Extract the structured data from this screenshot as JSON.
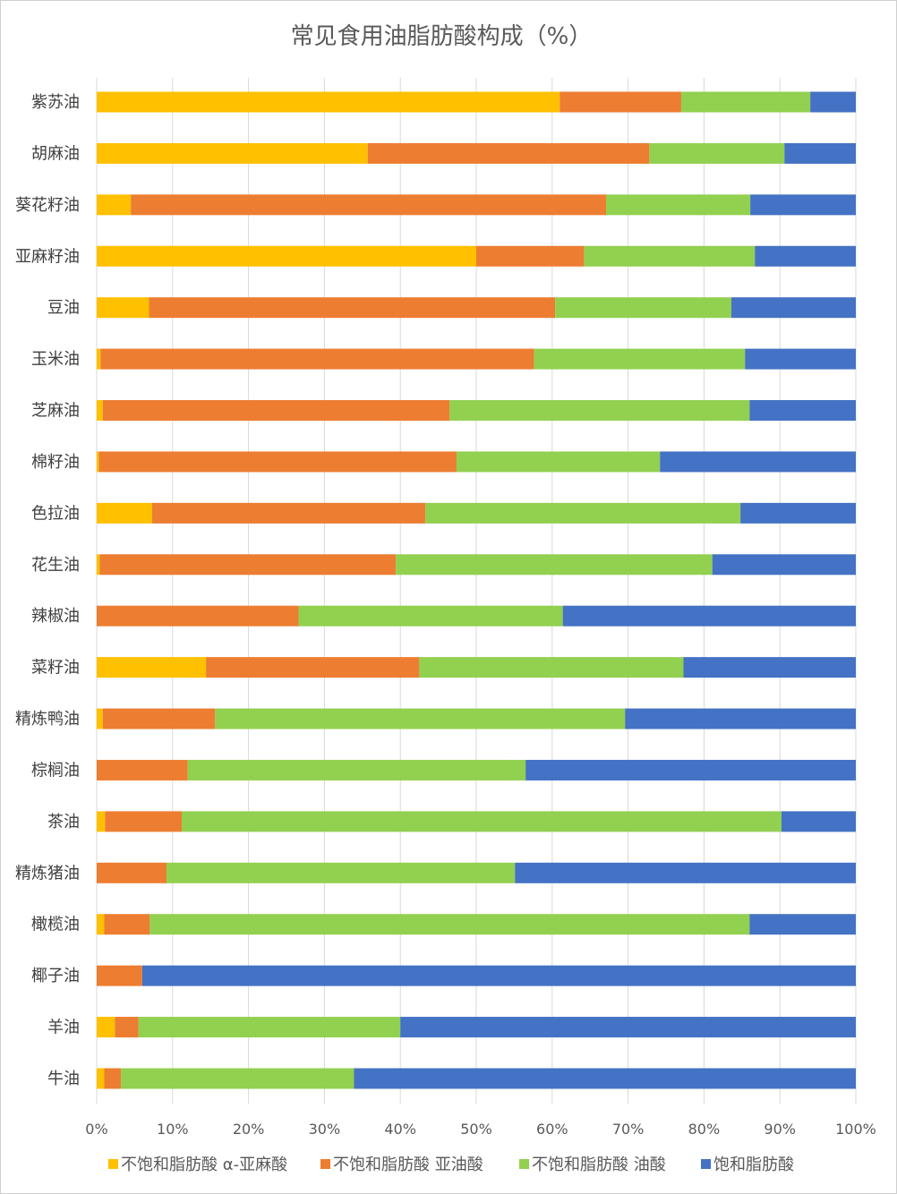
{
  "chart_data": {
    "type": "bar",
    "orientation": "horizontal",
    "stacked": "percent",
    "title": "常见食用油脂肪酸构成（%）",
    "categories": [
      "紫苏油",
      "胡麻油",
      "葵花籽油",
      "亚麻籽油",
      "豆油",
      "玉米油",
      "芝麻油",
      "棉籽油",
      "色拉油",
      "花生油",
      "辣椒油",
      "菜籽油",
      "精炼鸭油",
      "棕榈油",
      "茶油",
      "精炼猪油",
      "橄榄油",
      "椰子油",
      "羊油",
      "牛油"
    ],
    "series": [
      {
        "name": "不饱和脂肪酸 α-亚麻酸",
        "color": "#FFC000",
        "values": [
          61.0,
          35.7,
          4.5,
          50.0,
          6.9,
          0.5,
          0.8,
          0.3,
          7.3,
          0.4,
          0.0,
          14.4,
          0.8,
          0.0,
          1.1,
          0.0,
          1.0,
          0.0,
          2.4,
          1.0
        ]
      },
      {
        "name": "不饱和脂肪酸 亚油酸",
        "color": "#ED7D31",
        "values": [
          16.0,
          37.1,
          62.6,
          14.2,
          53.5,
          57.1,
          45.7,
          47.1,
          36.0,
          39.0,
          26.6,
          28.1,
          14.8,
          12.0,
          10.1,
          9.2,
          6.0,
          6.0,
          3.1,
          2.2
        ]
      },
      {
        "name": "不饱和脂肪酸 油酸",
        "color": "#92D050",
        "values": [
          17.0,
          17.8,
          19.0,
          22.5,
          23.2,
          27.8,
          39.5,
          26.8,
          41.5,
          41.7,
          34.8,
          34.8,
          54.0,
          44.5,
          79.0,
          45.9,
          79.0,
          0.0,
          34.5,
          30.7
        ]
      },
      {
        "name": "饱和脂肪酸",
        "color": "#4472C4",
        "values": [
          6.0,
          9.4,
          13.9,
          13.3,
          16.4,
          14.6,
          14.0,
          25.8,
          15.2,
          18.9,
          38.6,
          22.7,
          30.4,
          43.5,
          9.8,
          44.9,
          14.0,
          94.0,
          60.0,
          66.1
        ]
      }
    ],
    "x_ticks": [
      "0%",
      "10%",
      "20%",
      "30%",
      "40%",
      "50%",
      "60%",
      "70%",
      "80%",
      "90%",
      "100%"
    ],
    "xlim": [
      0,
      100
    ],
    "grid": "vertical",
    "legend": "bottom"
  }
}
